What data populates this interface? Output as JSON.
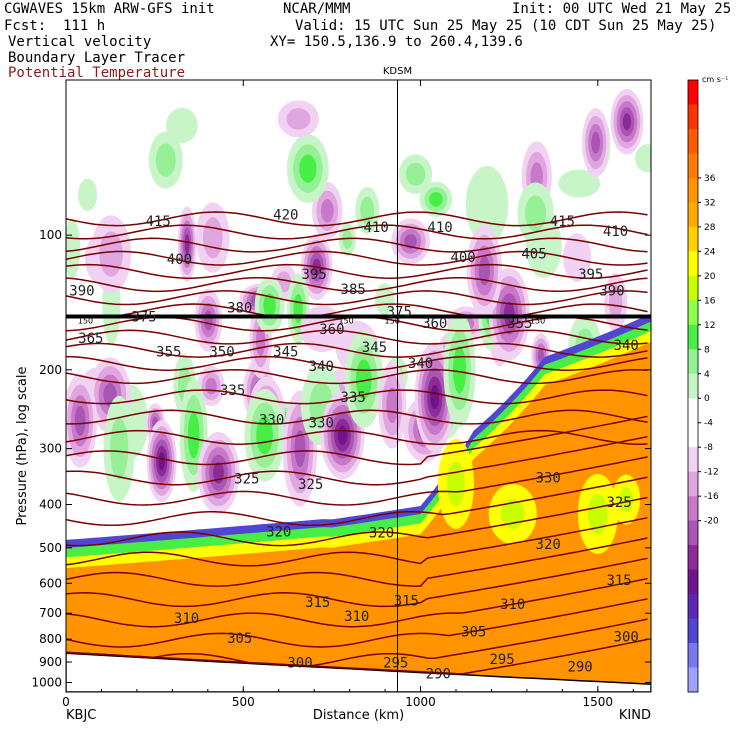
{
  "header": {
    "model": "CGWAVES 15km ARW-GFS init",
    "org": "NCAR/MMM",
    "init": "Init: 00 UTC Wed 21 May 25",
    "fcst": "Fcst:  111 h",
    "valid": "Valid: 15 UTC Sun 25 May 25 (10 CDT Sun 25 May 25)",
    "field1": "Vertical velocity",
    "xy": "XY= 150.5,136.9 to 260.4,139.6",
    "field2": "Boundary Layer Tracer",
    "field3": "Potential Temperature"
  },
  "colors": {
    "theta": "#7a0000",
    "field3_text": "#8b1a1a",
    "tracer": "#000000"
  },
  "chart_data": {
    "type": "heatmap",
    "xlabel": "Distance (km)",
    "ylabel": "Pressure (hPa), log scale",
    "xlim": [
      0,
      1650
    ],
    "ylim": [
      1050,
      45
    ],
    "y_log_scale": true,
    "x_ticks": [
      0,
      500,
      1000,
      1500
    ],
    "y_ticks": [
      100,
      200,
      300,
      400,
      500,
      600,
      700,
      800,
      900,
      1000
    ],
    "endpoints": {
      "left": "KBJC",
      "right": "KIND"
    },
    "marker": {
      "label": "KDSM",
      "x": 935
    },
    "colorbar": {
      "units": "cm s⁻¹",
      "labels": [
        36,
        32,
        28,
        24,
        20,
        16,
        12,
        8,
        4,
        0,
        -4,
        -8,
        -12,
        -16,
        -20
      ],
      "colors": [
        "#ff0000",
        "#ff3300",
        "#ff5a00",
        "#ff7a00",
        "#ff9400",
        "#ffaa00",
        "#ffd200",
        "#ffff00",
        "#c8ff00",
        "#90ff50",
        "#46ee46",
        "#96f096",
        "#c8f5c8",
        "#ffffff",
        "#ffffff",
        "#f2d2f2",
        "#e0a6e0",
        "#c878c8",
        "#a855b4",
        "#8c2a96",
        "#6e148c",
        "#5a28b4",
        "#5046d2",
        "#7878f0",
        "#a0a0ff"
      ]
    },
    "theta_labels": [
      {
        "t": "415",
        "x": 260,
        "p": 93
      },
      {
        "t": "420",
        "x": 620,
        "p": 90
      },
      {
        "t": "410",
        "x": 875,
        "p": 96
      },
      {
        "t": "410",
        "x": 1055,
        "p": 96
      },
      {
        "t": "415",
        "x": 1400,
        "p": 93
      },
      {
        "t": "410",
        "x": 1550,
        "p": 98
      },
      {
        "t": "400",
        "x": 320,
        "p": 113
      },
      {
        "t": "405",
        "x": 1320,
        "p": 110
      },
      {
        "t": "400",
        "x": 1120,
        "p": 112
      },
      {
        "t": "395",
        "x": 700,
        "p": 122
      },
      {
        "t": "395",
        "x": 1480,
        "p": 122
      },
      {
        "t": "390",
        "x": 45,
        "p": 133
      },
      {
        "t": "385",
        "x": 810,
        "p": 132
      },
      {
        "t": "390",
        "x": 1540,
        "p": 133
      },
      {
        "t": "380",
        "x": 490,
        "p": 145
      },
      {
        "t": "375",
        "x": 220,
        "p": 152
      },
      {
        "t": "375",
        "x": 940,
        "p": 148
      },
      {
        "t": "360",
        "x": 750,
        "p": 162
      },
      {
        "t": "360",
        "x": 1040,
        "p": 157
      },
      {
        "t": "355",
        "x": 1280,
        "p": 157
      },
      {
        "t": "365",
        "x": 70,
        "p": 170
      },
      {
        "t": "355",
        "x": 290,
        "p": 182
      },
      {
        "t": "350",
        "x": 440,
        "p": 182
      },
      {
        "t": "345",
        "x": 620,
        "p": 182
      },
      {
        "t": "345",
        "x": 870,
        "p": 178
      },
      {
        "t": "340",
        "x": 720,
        "p": 196
      },
      {
        "t": "340",
        "x": 1000,
        "p": 193
      },
      {
        "t": "340",
        "x": 1580,
        "p": 176
      },
      {
        "t": "335",
        "x": 470,
        "p": 222
      },
      {
        "t": "335",
        "x": 810,
        "p": 230
      },
      {
        "t": "330",
        "x": 580,
        "p": 258
      },
      {
        "t": "330",
        "x": 720,
        "p": 262
      },
      {
        "t": "325",
        "x": 510,
        "p": 350
      },
      {
        "t": "325",
        "x": 690,
        "p": 360
      },
      {
        "t": "330",
        "x": 1360,
        "p": 348
      },
      {
        "t": "325",
        "x": 1560,
        "p": 395
      },
      {
        "t": "320",
        "x": 600,
        "p": 460
      },
      {
        "t": "320",
        "x": 890,
        "p": 462
      },
      {
        "t": "320",
        "x": 1360,
        "p": 490
      },
      {
        "t": "315",
        "x": 710,
        "p": 660
      },
      {
        "t": "310",
        "x": 340,
        "p": 718
      },
      {
        "t": "310",
        "x": 820,
        "p": 710
      },
      {
        "t": "315",
        "x": 960,
        "p": 655
      },
      {
        "t": "310",
        "x": 1260,
        "p": 668
      },
      {
        "t": "315",
        "x": 1560,
        "p": 590
      },
      {
        "t": "305",
        "x": 490,
        "p": 795
      },
      {
        "t": "305",
        "x": 1150,
        "p": 770
      },
      {
        "t": "300",
        "x": 660,
        "p": 902
      },
      {
        "t": "295",
        "x": 930,
        "p": 902
      },
      {
        "t": "295",
        "x": 1230,
        "p": 885
      },
      {
        "t": "290",
        "x": 1050,
        "p": 955
      },
      {
        "t": "290",
        "x": 1450,
        "p": 920
      },
      {
        "t": "300",
        "x": 1580,
        "p": 790
      }
    ],
    "tracer_labels": [
      {
        "t": "150",
        "x": 55,
        "p": 155
      },
      {
        "t": "150",
        "x": 790,
        "p": 155
      },
      {
        "t": "150",
        "x": 920,
        "p": 155
      },
      {
        "t": "150",
        "x": 1330,
        "p": 155
      }
    ]
  }
}
